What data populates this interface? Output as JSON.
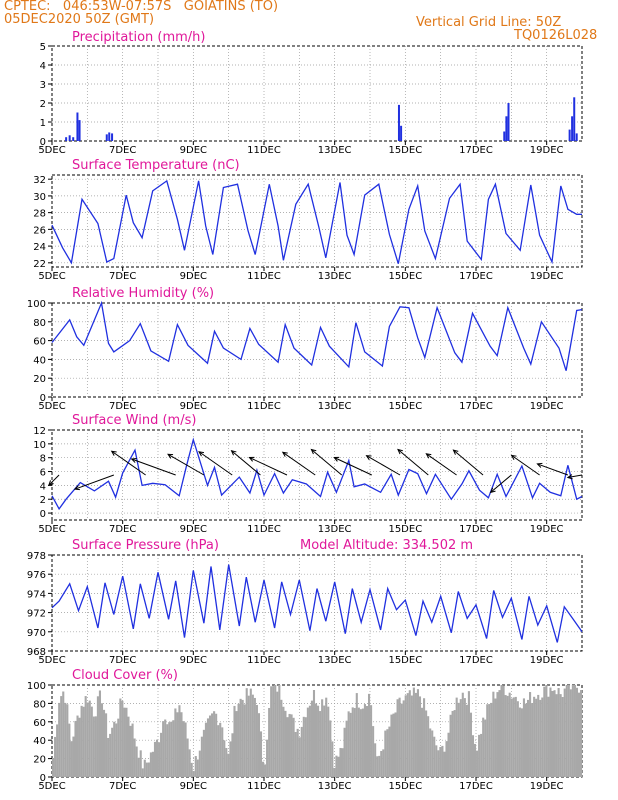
{
  "header": {
    "line1": "CPTEC:   046:53W-07:57S   GOIATINS (TO)",
    "line2": "05DEC2020 50Z (GMT)",
    "right1": "Vertical Grid Line: 50Z",
    "right2": "TQ0126L028"
  },
  "colors": {
    "header": "#e07818",
    "title": "#e0189a",
    "line": "#2030e0",
    "cloud": "#a8a8a8"
  },
  "chart_data": [
    {
      "type": "bar",
      "title": "Precipitation (mm/h)",
      "ylim": [
        0,
        5
      ],
      "yticks": [
        "0",
        "1",
        "2",
        "3",
        "4",
        "5"
      ],
      "xticks": [
        "5DEC",
        "7DEC",
        "9DEC",
        "11DEC",
        "13DEC",
        "15DEC",
        "17DEC",
        "19DEC"
      ],
      "x_range_days": [
        5,
        20
      ],
      "bars": [
        {
          "x": 5.4,
          "y": 0.2
        },
        {
          "x": 5.5,
          "y": 0.3
        },
        {
          "x": 5.6,
          "y": 0.2
        },
        {
          "x": 5.72,
          "y": 1.5
        },
        {
          "x": 5.78,
          "y": 1.1
        },
        {
          "x": 6.55,
          "y": 0.35
        },
        {
          "x": 6.62,
          "y": 0.45
        },
        {
          "x": 6.7,
          "y": 0.4
        },
        {
          "x": 14.82,
          "y": 1.9
        },
        {
          "x": 14.88,
          "y": 0.8
        },
        {
          "x": 17.8,
          "y": 0.5
        },
        {
          "x": 17.86,
          "y": 1.3
        },
        {
          "x": 17.92,
          "y": 2.0
        },
        {
          "x": 19.65,
          "y": 0.6
        },
        {
          "x": 19.72,
          "y": 1.3
        },
        {
          "x": 19.78,
          "y": 2.3
        },
        {
          "x": 19.85,
          "y": 0.4
        }
      ]
    },
    {
      "type": "line",
      "title": "Surface Temperature (nC)",
      "ylim": [
        21.5,
        32.5
      ],
      "yticks": [
        "22",
        "24",
        "26",
        "28",
        "30",
        "32"
      ],
      "xticks": [
        "5DEC",
        "7DEC",
        "9DEC",
        "11DEC",
        "13DEC",
        "15DEC",
        "17DEC",
        "19DEC"
      ],
      "x_range_days": [
        5,
        20
      ],
      "x": [
        5.0,
        5.3,
        5.55,
        5.85,
        6.3,
        6.55,
        6.75,
        7.1,
        7.3,
        7.55,
        7.85,
        8.25,
        8.55,
        8.75,
        9.15,
        9.35,
        9.55,
        9.85,
        10.25,
        10.55,
        10.75,
        11.15,
        11.4,
        11.55,
        11.9,
        12.25,
        12.55,
        12.75,
        13.15,
        13.35,
        13.55,
        13.85,
        14.25,
        14.55,
        14.8,
        15.1,
        15.35,
        15.55,
        15.85,
        16.25,
        16.55,
        16.75,
        17.15,
        17.35,
        17.55,
        17.85,
        18.25,
        18.55,
        18.8,
        19.15,
        19.4,
        19.6,
        19.85,
        20.0
      ],
      "values": [
        26.5,
        23.8,
        22.0,
        29.6,
        26.7,
        22.1,
        22.5,
        30.1,
        26.8,
        25.0,
        30.6,
        31.8,
        27.2,
        23.5,
        31.8,
        26.4,
        23.0,
        31.0,
        31.4,
        25.8,
        23.0,
        31.4,
        26.4,
        22.3,
        29.0,
        31.4,
        26.3,
        22.6,
        31.6,
        25.3,
        23.0,
        30.1,
        31.4,
        25.4,
        21.9,
        28.4,
        31.2,
        25.8,
        22.5,
        29.7,
        31.4,
        24.6,
        22.4,
        29.6,
        31.4,
        25.5,
        23.5,
        31.3,
        25.3,
        22.1,
        31.2,
        28.4,
        27.8,
        27.8
      ]
    },
    {
      "type": "line",
      "title": "Relative Humidity (%)",
      "ylim": [
        0,
        100
      ],
      "yticks": [
        "0",
        "20",
        "40",
        "60",
        "80",
        "100"
      ],
      "xticks": [
        "5DEC",
        "7DEC",
        "9DEC",
        "11DEC",
        "13DEC",
        "15DEC",
        "17DEC",
        "19DEC"
      ],
      "x_range_days": [
        5,
        20
      ],
      "x": [
        5.0,
        5.5,
        5.7,
        5.9,
        6.4,
        6.6,
        6.75,
        7.2,
        7.5,
        7.8,
        8.3,
        8.55,
        8.85,
        9.4,
        9.6,
        9.85,
        10.35,
        10.6,
        10.85,
        11.4,
        11.6,
        11.85,
        12.35,
        12.6,
        12.85,
        13.4,
        13.6,
        13.85,
        14.35,
        14.55,
        14.85,
        15.1,
        15.35,
        15.55,
        15.9,
        16.4,
        16.6,
        16.9,
        17.4,
        17.6,
        17.9,
        18.35,
        18.55,
        18.85,
        19.35,
        19.55,
        19.85,
        20.0
      ],
      "values": [
        58,
        82,
        64,
        55,
        100,
        57,
        48,
        60,
        78,
        49,
        38,
        77,
        55,
        36,
        70,
        52,
        40,
        73,
        56,
        37,
        77,
        52,
        34,
        74,
        54,
        32,
        79,
        48,
        33,
        75,
        96,
        95,
        63,
        42,
        95,
        47,
        37,
        89,
        54,
        44,
        95,
        52,
        35,
        80,
        52,
        28,
        92,
        93
      ]
    },
    {
      "type": "line",
      "title": "Surface Wind (m/s)",
      "ylim": [
        -1,
        12
      ],
      "yticks": [
        "0",
        "2",
        "4",
        "6",
        "8",
        "10",
        "12"
      ],
      "xticks": [
        "5DEC",
        "7DEC",
        "9DEC",
        "11DEC",
        "13DEC",
        "15DEC",
        "17DEC",
        "19DEC"
      ],
      "x_range_days": [
        5,
        20
      ],
      "x": [
        5.0,
        5.2,
        5.4,
        5.8,
        6.2,
        6.6,
        6.8,
        7.0,
        7.35,
        7.55,
        7.85,
        8.2,
        8.6,
        8.8,
        9.0,
        9.4,
        9.6,
        9.8,
        10.3,
        10.6,
        10.8,
        11.0,
        11.3,
        11.55,
        11.8,
        12.2,
        12.6,
        12.8,
        13.05,
        13.4,
        13.55,
        13.85,
        14.3,
        14.6,
        14.8,
        15.1,
        15.35,
        15.6,
        15.85,
        16.3,
        16.6,
        16.8,
        17.1,
        17.35,
        17.6,
        17.85,
        18.3,
        18.6,
        18.8,
        19.1,
        19.4,
        19.6,
        19.85,
        20.0
      ],
      "values": [
        2.5,
        0.6,
        2.0,
        4.4,
        3.2,
        4.6,
        2.3,
        5.8,
        9.1,
        4.0,
        4.3,
        4.1,
        2.5,
        6.7,
        10.6,
        4.0,
        6.6,
        2.6,
        5.2,
        2.9,
        6.2,
        2.6,
        5.7,
        2.9,
        4.8,
        4.2,
        2.4,
        5.9,
        3.0,
        7.6,
        3.8,
        4.2,
        3.0,
        5.6,
        2.6,
        6.3,
        5.7,
        2.8,
        5.6,
        2.0,
        4.2,
        6.1,
        3.3,
        2.2,
        5.6,
        2.4,
        6.8,
        2.2,
        4.3,
        3.0,
        2.5,
        6.9,
        2.0,
        2.4
      ],
      "vectors": [
        {
          "x": 5.2,
          "y": 5.5,
          "ang": 135,
          "len": 1.6
        },
        {
          "x": 6.75,
          "y": 5.5,
          "ang": 160,
          "len": 4.6
        },
        {
          "x": 7.65,
          "y": 5.5,
          "ang": 215,
          "len": 4.6
        },
        {
          "x": 8.5,
          "y": 5.5,
          "ang": 200,
          "len": 5.2
        },
        {
          "x": 9.3,
          "y": 5.5,
          "ang": 210,
          "len": 4.6
        },
        {
          "x": 10.1,
          "y": 5.5,
          "ang": 215,
          "len": 4.5
        },
        {
          "x": 10.9,
          "y": 5.5,
          "ang": 220,
          "len": 4.2
        },
        {
          "x": 11.65,
          "y": 5.5,
          "ang": 205,
          "len": 4.6
        },
        {
          "x": 12.45,
          "y": 5.5,
          "ang": 215,
          "len": 4.4
        },
        {
          "x": 13.2,
          "y": 5.5,
          "ang": 220,
          "len": 4.4
        },
        {
          "x": 14.05,
          "y": 5.5,
          "ang": 205,
          "len": 4.6
        },
        {
          "x": 14.85,
          "y": 5.5,
          "ang": 210,
          "len": 4.3
        },
        {
          "x": 15.65,
          "y": 5.5,
          "ang": 220,
          "len": 4.4
        },
        {
          "x": 16.45,
          "y": 5.5,
          "ang": 215,
          "len": 4.1
        },
        {
          "x": 17.2,
          "y": 5.5,
          "ang": 220,
          "len": 4.3
        },
        {
          "x": 18.0,
          "y": 5.5,
          "ang": 140,
          "len": 3.0
        },
        {
          "x": 18.8,
          "y": 5.5,
          "ang": 215,
          "len": 3.8
        },
        {
          "x": 19.6,
          "y": 5.5,
          "ang": 200,
          "len": 3.6
        },
        {
          "x": 20.0,
          "y": 5.5,
          "ang": 170,
          "len": 1.6
        }
      ]
    },
    {
      "type": "line",
      "title": "Surface Pressure (hPa)",
      "subtitle": "Model Altitude: 334.502 m",
      "ylim": [
        968,
        978
      ],
      "yticks": [
        "968",
        "970",
        "972",
        "974",
        "976",
        "978"
      ],
      "xticks": [
        "5DEC",
        "7DEC",
        "9DEC",
        "11DEC",
        "13DEC",
        "15DEC",
        "17DEC",
        "19DEC"
      ],
      "x_range_days": [
        5,
        20
      ],
      "x": [
        5.0,
        5.2,
        5.5,
        5.75,
        6.0,
        6.3,
        6.5,
        6.75,
        7.0,
        7.3,
        7.5,
        7.75,
        8.0,
        8.3,
        8.5,
        8.75,
        9.0,
        9.3,
        9.5,
        9.75,
        10.0,
        10.3,
        10.5,
        10.75,
        11.0,
        11.3,
        11.5,
        11.75,
        12.0,
        12.3,
        12.5,
        12.75,
        13.0,
        13.3,
        13.5,
        13.75,
        14.0,
        14.3,
        14.5,
        14.75,
        15.0,
        15.3,
        15.5,
        15.75,
        16.0,
        16.3,
        16.5,
        16.75,
        17.0,
        17.3,
        17.5,
        17.75,
        18.0,
        18.3,
        18.5,
        18.75,
        19.0,
        19.3,
        19.5,
        19.75,
        20.0
      ],
      "values": [
        972.5,
        973.2,
        975.0,
        972.2,
        974.7,
        970.4,
        975.1,
        971.8,
        975.8,
        970.3,
        975.0,
        971.4,
        976.2,
        971.3,
        975.3,
        969.4,
        976.4,
        970.9,
        976.8,
        970.2,
        977.0,
        970.6,
        975.7,
        971.0,
        975.4,
        970.4,
        975.2,
        971.8,
        975.4,
        970.1,
        974.5,
        971.1,
        975.2,
        969.8,
        974.5,
        971.0,
        974.4,
        970.2,
        974.5,
        972.3,
        973.3,
        969.6,
        973.2,
        971.0,
        973.7,
        969.9,
        974.2,
        971.4,
        972.8,
        969.3,
        974.3,
        971.5,
        973.5,
        969.2,
        973.7,
        970.7,
        972.7,
        968.9,
        972.6,
        971.3,
        970.0
      ]
    },
    {
      "type": "area",
      "title": "Cloud Cover (%)",
      "ylim": [
        0,
        100
      ],
      "yticks": [
        "0",
        "20",
        "40",
        "60",
        "80",
        "100"
      ],
      "xticks": [
        "5DEC",
        "7DEC",
        "9DEC",
        "11DEC",
        "13DEC",
        "15DEC",
        "17DEC",
        "19DEC"
      ],
      "x_range_days": [
        5,
        20
      ],
      "x": [
        5.0,
        5.2,
        5.35,
        5.55,
        5.8,
        6.0,
        6.2,
        6.4,
        6.6,
        6.8,
        7.0,
        7.2,
        7.4,
        7.6,
        7.8,
        8.0,
        8.2,
        8.4,
        8.6,
        8.8,
        9.0,
        9.2,
        9.4,
        9.6,
        9.8,
        10.0,
        10.2,
        10.4,
        10.6,
        10.8,
        11.0,
        11.2,
        11.4,
        11.6,
        11.8,
        12.0,
        12.2,
        12.4,
        12.6,
        12.8,
        13.0,
        13.2,
        13.4,
        13.6,
        13.8,
        14.0,
        14.2,
        14.4,
        14.6,
        14.8,
        15.0,
        15.2,
        15.4,
        15.6,
        15.8,
        16.0,
        16.2,
        16.4,
        16.6,
        16.8,
        17.0,
        17.2,
        17.4,
        17.6,
        17.8,
        18.0,
        18.2,
        18.4,
        18.6,
        18.8,
        19.0,
        19.2,
        19.4,
        19.6,
        19.8,
        20.0
      ],
      "values": [
        10,
        85,
        95,
        40,
        75,
        88,
        70,
        90,
        45,
        60,
        85,
        65,
        35,
        10,
        25,
        40,
        70,
        55,
        80,
        50,
        10,
        35,
        55,
        70,
        60,
        20,
        80,
        85,
        90,
        85,
        10,
        95,
        98,
        80,
        60,
        50,
        75,
        90,
        80,
        90,
        15,
        30,
        70,
        85,
        80,
        90,
        15,
        40,
        60,
        78,
        85,
        88,
        90,
        70,
        40,
        25,
        45,
        80,
        92,
        85,
        30,
        60,
        80,
        95,
        98,
        90,
        85,
        80,
        88,
        92,
        95,
        98,
        90,
        97,
        98,
        100
      ]
    }
  ]
}
